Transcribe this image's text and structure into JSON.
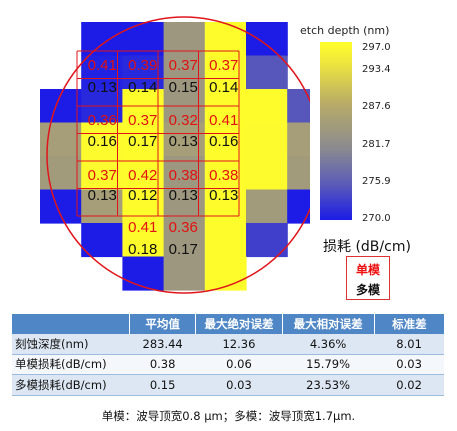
{
  "chart_data": {
    "type": "heatmap",
    "grid_cols": 7,
    "grid_rows": 8,
    "colorbar": {
      "title": "etch depth (nm)",
      "ticks": [
        "297.0",
        "293.4",
        "287.6",
        "281.7",
        "275.9",
        "270.0"
      ],
      "range": [
        270.0,
        297.0
      ],
      "colors": [
        "#1c1ce6",
        "#5b5bb8",
        "#8a8a90",
        "#b8ab68",
        "#f2ea3a",
        "#ffff2a"
      ]
    },
    "cells": [
      {
        "r": 0,
        "c": 1,
        "v": 270.0
      },
      {
        "r": 0,
        "c": 2,
        "v": 270.0
      },
      {
        "r": 0,
        "c": 3,
        "v": 283.0
      },
      {
        "r": 0,
        "c": 4,
        "v": 296.5
      },
      {
        "r": 0,
        "c": 5,
        "v": 270.0
      },
      {
        "r": 1,
        "c": 1,
        "v": 270.5
      },
      {
        "r": 1,
        "c": 2,
        "v": 271.0
      },
      {
        "r": 1,
        "c": 3,
        "v": 283.0
      },
      {
        "r": 1,
        "c": 4,
        "v": 296.5
      },
      {
        "r": 1,
        "c": 5,
        "v": 275.0
      },
      {
        "r": 2,
        "c": 0,
        "v": 270.0
      },
      {
        "r": 2,
        "c": 1,
        "v": 271.0
      },
      {
        "r": 2,
        "c": 2,
        "v": 296.5
      },
      {
        "r": 2,
        "c": 3,
        "v": 283.0
      },
      {
        "r": 2,
        "c": 4,
        "v": 296.5
      },
      {
        "r": 2,
        "c": 5,
        "v": 296.5
      },
      {
        "r": 2,
        "c": 6,
        "v": 275.0
      },
      {
        "r": 3,
        "c": 0,
        "v": 284.0
      },
      {
        "r": 3,
        "c": 1,
        "v": 296.0
      },
      {
        "r": 3,
        "c": 2,
        "v": 296.5
      },
      {
        "r": 3,
        "c": 3,
        "v": 284.0
      },
      {
        "r": 3,
        "c": 4,
        "v": 296.5
      },
      {
        "r": 3,
        "c": 5,
        "v": 296.0
      },
      {
        "r": 3,
        "c": 6,
        "v": 284.0
      },
      {
        "r": 4,
        "c": 0,
        "v": 283.5
      },
      {
        "r": 4,
        "c": 1,
        "v": 296.0
      },
      {
        "r": 4,
        "c": 2,
        "v": 296.5
      },
      {
        "r": 4,
        "c": 3,
        "v": 283.0
      },
      {
        "r": 4,
        "c": 4,
        "v": 296.5
      },
      {
        "r": 4,
        "c": 5,
        "v": 296.0
      },
      {
        "r": 4,
        "c": 6,
        "v": 283.5
      },
      {
        "r": 5,
        "c": 0,
        "v": 270.0
      },
      {
        "r": 5,
        "c": 1,
        "v": 284.0
      },
      {
        "r": 5,
        "c": 2,
        "v": 296.5
      },
      {
        "r": 5,
        "c": 3,
        "v": 283.0
      },
      {
        "r": 5,
        "c": 4,
        "v": 296.5
      },
      {
        "r": 5,
        "c": 5,
        "v": 283.5
      },
      {
        "r": 5,
        "c": 6,
        "v": 270.0
      },
      {
        "r": 6,
        "c": 1,
        "v": 270.0
      },
      {
        "r": 6,
        "c": 2,
        "v": 296.5
      },
      {
        "r": 6,
        "c": 3,
        "v": 283.0
      },
      {
        "r": 6,
        "c": 4,
        "v": 296.5
      },
      {
        "r": 6,
        "c": 5,
        "v": 273.0
      },
      {
        "r": 7,
        "c": 2,
        "v": 270.0
      },
      {
        "r": 7,
        "c": 3,
        "v": 283.0
      },
      {
        "r": 7,
        "c": 4,
        "v": 296.5
      }
    ],
    "loss_title": "损耗 (dB/cm)",
    "single_mode_label_color": "#e11111",
    "multi_mode_label_color": "#111111",
    "single_mode_loss": [
      {
        "r": 0,
        "c": 1,
        "t": "0.41"
      },
      {
        "r": 0,
        "c": 2,
        "t": "0.39"
      },
      {
        "r": 0,
        "c": 3,
        "t": "0.37"
      },
      {
        "r": 0,
        "c": 4,
        "t": "0.37"
      },
      {
        "r": 1,
        "c": 1,
        "t": "0.36"
      },
      {
        "r": 1,
        "c": 2,
        "t": "0.37"
      },
      {
        "r": 1,
        "c": 3,
        "t": "0.32"
      },
      {
        "r": 1,
        "c": 4,
        "t": "0.41"
      },
      {
        "r": 2,
        "c": 1,
        "t": "0.37"
      },
      {
        "r": 2,
        "c": 2,
        "t": "0.42"
      },
      {
        "r": 2,
        "c": 3,
        "t": "0.38"
      },
      {
        "r": 2,
        "c": 4,
        "t": "0.38"
      },
      {
        "r": 3,
        "c": 2,
        "t": "0.41"
      },
      {
        "r": 3,
        "c": 3,
        "t": "0.36"
      }
    ],
    "multi_mode_loss": [
      {
        "r": 0,
        "c": 1,
        "t": "0.13"
      },
      {
        "r": 0,
        "c": 2,
        "t": "0.14"
      },
      {
        "r": 0,
        "c": 3,
        "t": "0.15"
      },
      {
        "r": 0,
        "c": 4,
        "t": "0.14"
      },
      {
        "r": 1,
        "c": 1,
        "t": "0.16"
      },
      {
        "r": 1,
        "c": 2,
        "t": "0.17"
      },
      {
        "r": 1,
        "c": 3,
        "t": "0.13"
      },
      {
        "r": 1,
        "c": 4,
        "t": "0.16"
      },
      {
        "r": 2,
        "c": 1,
        "t": "0.13"
      },
      {
        "r": 2,
        "c": 2,
        "t": "0.12"
      },
      {
        "r": 2,
        "c": 3,
        "t": "0.13"
      },
      {
        "r": 2,
        "c": 4,
        "t": "0.13"
      },
      {
        "r": 3,
        "c": 2,
        "t": "0.18"
      },
      {
        "r": 3,
        "c": 3,
        "t": "0.17"
      }
    ]
  },
  "legend": {
    "single_mode": "单模",
    "multi_mode": "多模"
  },
  "table": {
    "headers": [
      "",
      "平均值",
      "最大绝对误差",
      "最大相对误差",
      "标准差"
    ],
    "rows": [
      [
        "刻蚀深度(nm)",
        "283.44",
        "12.36",
        "4.36%",
        "8.01"
      ],
      [
        "单模损耗(dB/cm)",
        "0.38",
        "0.06",
        "15.79%",
        "0.03"
      ],
      [
        "多模损耗(dB/cm)",
        "0.15",
        "0.03",
        "23.53%",
        "0.02"
      ]
    ]
  },
  "footnote": "单模：波导顶宽0.8 μm；多模：波导顶宽1.7μm."
}
